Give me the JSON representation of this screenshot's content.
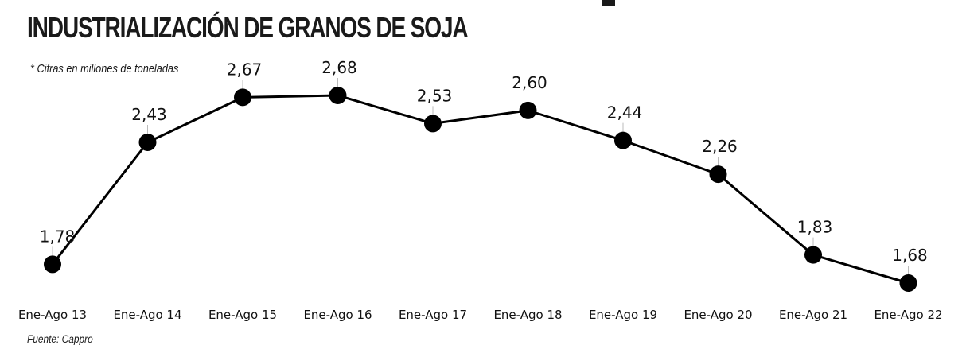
{
  "chart_data": {
    "type": "line",
    "title": "INDUSTRIALIZACIÓN DE GRANOS DE SOJA",
    "subtitle": "* Cifras en millones de toneladas",
    "source": "Fuente: Cappro",
    "categories": [
      "Ene-Ago 13",
      "Ene-Ago 14",
      "Ene-Ago 15",
      "Ene-Ago 16",
      "Ene-Ago 17",
      "Ene-Ago 18",
      "Ene-Ago 19",
      "Ene-Ago 20",
      "Ene-Ago 21",
      "Ene-Ago 22"
    ],
    "values": [
      1.78,
      2.43,
      2.67,
      2.68,
      2.53,
      2.6,
      2.44,
      2.26,
      1.83,
      1.68
    ],
    "value_labels": [
      "1,78",
      "2,43",
      "2,67",
      "2,68",
      "2,53",
      "2,60",
      "2,44",
      "2,26",
      "1,83",
      "1,68"
    ],
    "grid": false,
    "legend": "none",
    "colors": {
      "line": "#000000",
      "marker": "#000000",
      "leader": "#bbbbbb"
    }
  }
}
